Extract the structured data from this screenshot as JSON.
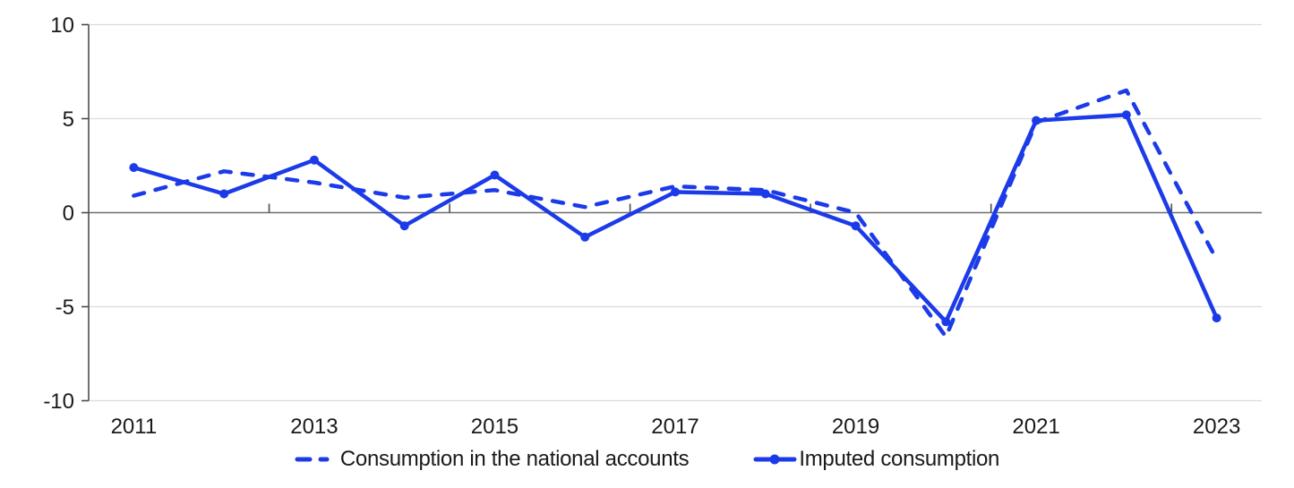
{
  "figure": {
    "background": "#ffffff",
    "accent_blue": "#1c3be8",
    "text_color": "#1a1a1a",
    "axis_color": "#4d4d4d",
    "zero_line_color": "#6e6e6e",
    "gridline_color": "#dcdcdc"
  },
  "legend": {
    "position": "bottom-center",
    "items": [
      {
        "label": "Consumption in the national accounts",
        "marker": "dashed-line"
      },
      {
        "label": "Imputed consumption",
        "marker": "solid-line-with-dot"
      }
    ]
  },
  "chart_data": {
    "type": "line",
    "x": [
      2011,
      2012,
      2013,
      2014,
      2015,
      2016,
      2017,
      2018,
      2019,
      2020,
      2021,
      2022,
      2023
    ],
    "xtick_labels": [
      "2011",
      "2013",
      "2015",
      "2017",
      "2019",
      "2021",
      "2023"
    ],
    "xtick_label_indices": [
      0,
      2,
      4,
      6,
      8,
      10,
      12
    ],
    "yticks": [
      10,
      5,
      0,
      -5,
      -10
    ],
    "ylim": [
      -10,
      10
    ],
    "grid": "horizontal",
    "legend_position": "bottom",
    "title": "",
    "xlabel": "",
    "ylabel": "",
    "series": [
      {
        "name": "Consumption in the national accounts",
        "style": "dashed",
        "marker": "none",
        "values": [
          0.9,
          2.2,
          1.6,
          0.8,
          1.2,
          0.3,
          1.4,
          1.2,
          0.0,
          -6.6,
          4.8,
          6.5,
          -2.5
        ]
      },
      {
        "name": "Imputed consumption",
        "style": "solid",
        "marker": "circle",
        "values": [
          2.4,
          1.0,
          2.8,
          -0.7,
          2.0,
          -1.3,
          1.1,
          1.0,
          -0.7,
          -5.8,
          4.9,
          5.2,
          -5.6
        ]
      }
    ]
  }
}
